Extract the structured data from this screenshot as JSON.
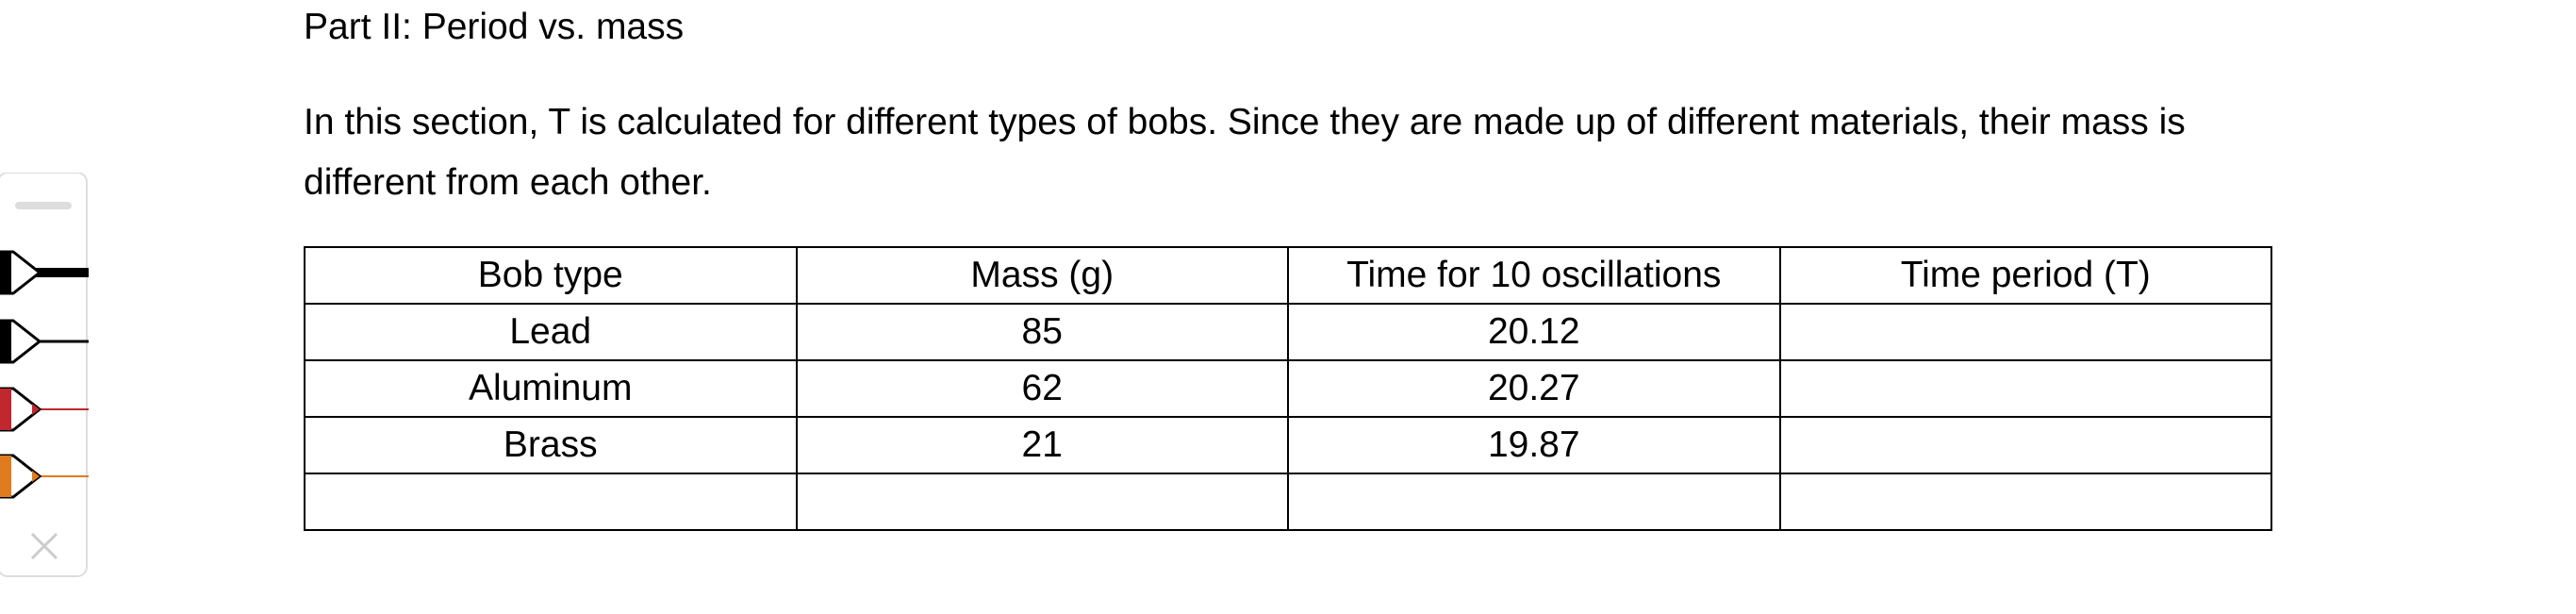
{
  "heading": "Part II: Period vs. mass",
  "paragraph": "In this section, T is calculated for different types of bobs. Since they are made up of different materials, their mass is different from each other.",
  "table": {
    "header": [
      "Bob type",
      "Mass (g)",
      "Time for 10 oscillations",
      "Time period (T)"
    ],
    "rows": [
      [
        "Lead",
        85,
        20.12
      ],
      [
        "Aluminum",
        62,
        20.27
      ],
      [
        "Brass",
        21,
        19.87
      ]
    ]
  }
}
